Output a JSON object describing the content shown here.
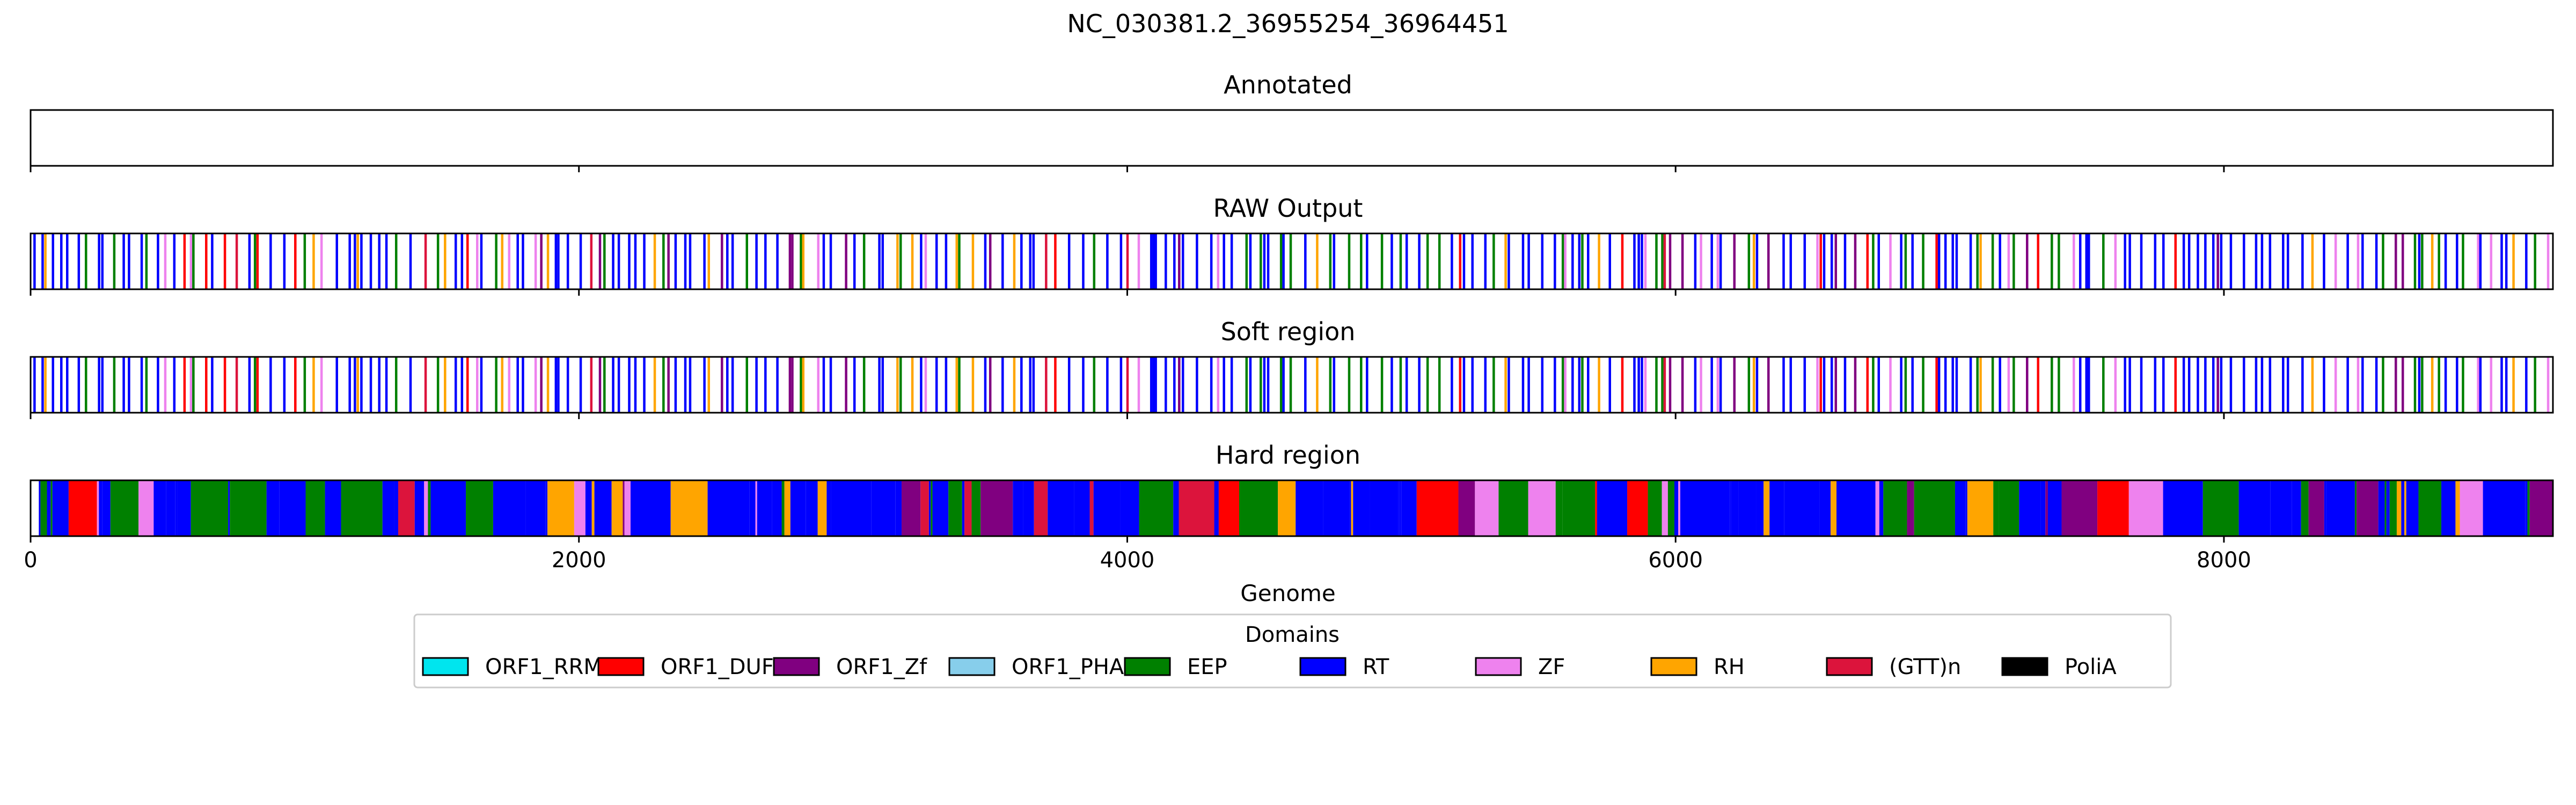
{
  "chart_data": {
    "type": "bar",
    "title": "NC_030381.2_36955254_36964451",
    "xlabel": "Genome",
    "xlim": [
      0,
      9200
    ],
    "xticks": [
      0,
      2000,
      4000,
      6000,
      8000
    ],
    "tick_labels": [
      "0",
      "2000",
      "4000",
      "6000",
      "8000"
    ],
    "tracks": [
      {
        "name": "Annotated",
        "pattern": "empty"
      },
      {
        "name": "RAW Output",
        "pattern": "thin_lines"
      },
      {
        "name": "Soft region",
        "pattern": "thin_lines"
      },
      {
        "name": "Hard region",
        "pattern": "filled_blocks"
      }
    ],
    "legend": {
      "title": "Domains",
      "position": "bottom-center",
      "items": [
        {
          "label": "ORF1_RRM",
          "color": "#00e5ee"
        },
        {
          "label": "ORF1_DUF",
          "color": "#ff0000"
        },
        {
          "label": "ORF1_Zf",
          "color": "#800080"
        },
        {
          "label": "ORF1_PHA",
          "color": "#87ceeb"
        },
        {
          "label": "EEP",
          "color": "#008000"
        },
        {
          "label": "RT",
          "color": "#0000ff"
        },
        {
          "label": "ZF",
          "color": "#ee82ee"
        },
        {
          "label": "RH",
          "color": "#ffa500"
        },
        {
          "label": "(GTT)n",
          "color": "#dc143c"
        },
        {
          "label": "PoliA",
          "color": "#000000"
        }
      ]
    }
  }
}
